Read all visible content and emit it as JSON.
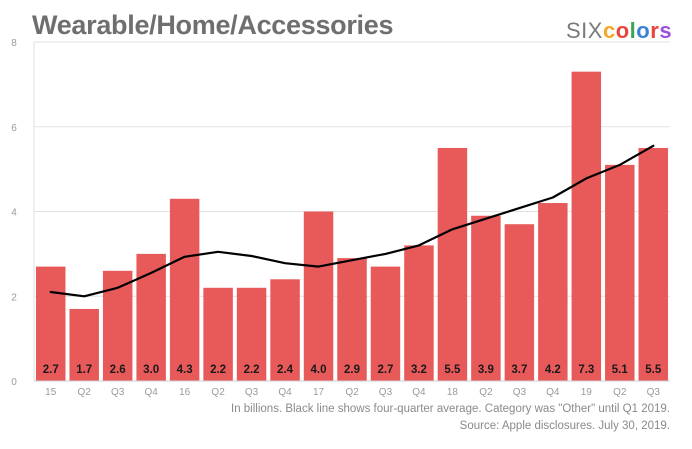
{
  "logo": {
    "six": "SIX",
    "colors_letters": [
      "c",
      "o",
      "l",
      "o",
      "r",
      "s"
    ],
    "colors_palette": [
      "#f5a623",
      "#e8453c",
      "#3aa655",
      "#3b82d6",
      "#e8453c",
      "#9b51e0"
    ]
  },
  "chart_data": {
    "type": "bar",
    "title": "Wearable/Home/Accessories",
    "categories": [
      "15",
      "Q2",
      "Q3",
      "Q4",
      "16",
      "Q2",
      "Q3",
      "Q4",
      "17",
      "Q2",
      "Q3",
      "Q4",
      "18",
      "Q2",
      "Q3",
      "Q4",
      "19",
      "Q2",
      "Q3"
    ],
    "series": [
      {
        "type": "bar",
        "values": [
          2.7,
          1.7,
          2.6,
          3.0,
          4.3,
          2.2,
          2.2,
          2.4,
          4.0,
          2.9,
          2.7,
          3.2,
          5.5,
          3.9,
          3.7,
          4.2,
          7.3,
          5.1,
          5.5
        ],
        "labels": [
          "2.7",
          "1.7",
          "2.6",
          "3.0",
          "4.3",
          "2.2",
          "2.2",
          "2.4",
          "4.0",
          "2.9",
          "2.7",
          "3.2",
          "5.5",
          "3.9",
          "3.7",
          "4.2",
          "7.3",
          "5.1",
          "5.5"
        ],
        "color": "#e85a5a"
      },
      {
        "type": "line",
        "values": [
          2.1,
          2.0,
          2.2,
          2.55,
          2.93,
          3.05,
          2.95,
          2.78,
          2.7,
          2.85,
          3.0,
          3.2,
          3.58,
          3.83,
          4.08,
          4.33,
          4.78,
          5.1,
          5.55
        ],
        "color": "#000000"
      }
    ],
    "ylim": [
      0,
      8
    ],
    "yticks": [
      "0",
      "2",
      "4",
      "6",
      "8"
    ],
    "grid": true,
    "gridline_color": "#e2e2e2"
  },
  "footnote": {
    "line1": "In billions. Black line shows four-quarter average. Category was \"Other\" until Q1 2019.",
    "line2": "Source: Apple disclosures. July 30, 2019."
  }
}
